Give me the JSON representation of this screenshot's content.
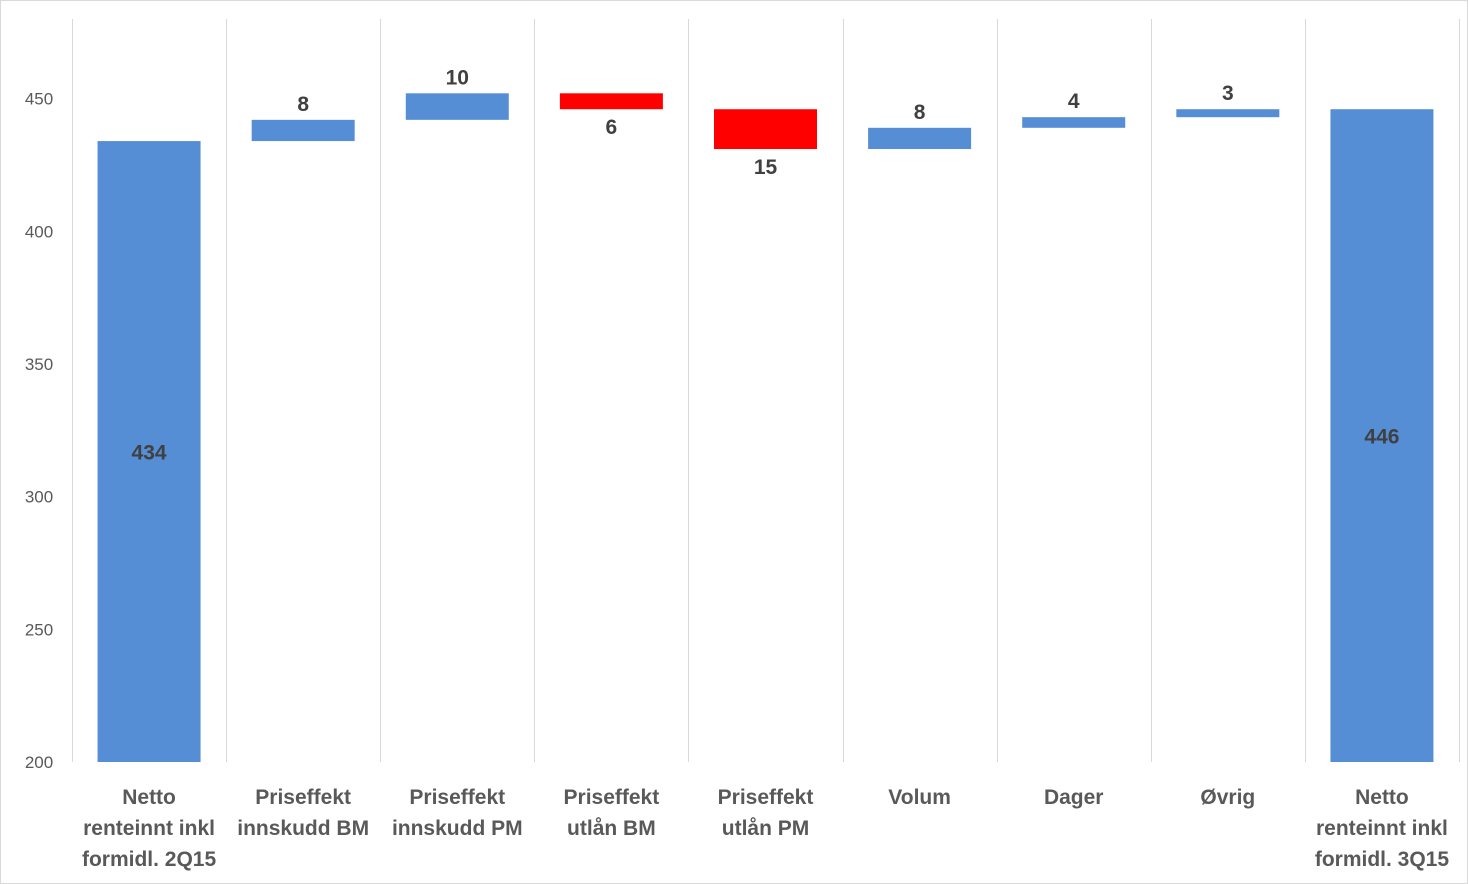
{
  "chart_data": {
    "type": "bar",
    "subtype": "waterfall",
    "title": "",
    "xlabel": "",
    "ylabel": "",
    "ylim": [
      200,
      480
    ],
    "yticks": [
      200,
      250,
      300,
      350,
      400,
      450
    ],
    "grid": "vertical",
    "legend": "none",
    "categories": [
      [
        "Netto",
        "renteinnt inkl",
        "formidl. 2Q15"
      ],
      [
        "Priseffekt",
        "innskudd BM"
      ],
      [
        "Priseffekt",
        "innskudd PM"
      ],
      [
        "Priseffekt",
        "utlån BM"
      ],
      [
        "Priseffekt",
        "utlån PM"
      ],
      [
        "Volum"
      ],
      [
        "Dager"
      ],
      [
        "Øvrig"
      ],
      [
        "Netto",
        "renteinnt inkl",
        "formidl. 3Q15"
      ]
    ],
    "bars": [
      {
        "kind": "total",
        "label": "434",
        "base": 200,
        "top": 434
      },
      {
        "kind": "increase",
        "label": "8",
        "base": 434,
        "top": 442
      },
      {
        "kind": "increase",
        "label": "10",
        "base": 442,
        "top": 452
      },
      {
        "kind": "decrease",
        "label": "6",
        "base": 446,
        "top": 452
      },
      {
        "kind": "decrease",
        "label": "15",
        "base": 431,
        "top": 446
      },
      {
        "kind": "increase",
        "label": "8",
        "base": 431,
        "top": 439
      },
      {
        "kind": "increase",
        "label": "4",
        "base": 439,
        "top": 443
      },
      {
        "kind": "increase",
        "label": "3",
        "base": 443,
        "top": 446
      },
      {
        "kind": "total",
        "label": "446",
        "base": 200,
        "top": 446
      }
    ],
    "colors": {
      "total": "#558ED5",
      "increase": "#558ED5",
      "decrease": "#FF0000",
      "grid": "#d9d9d9",
      "tick_text": "#595959",
      "label_text": "#404040"
    }
  }
}
